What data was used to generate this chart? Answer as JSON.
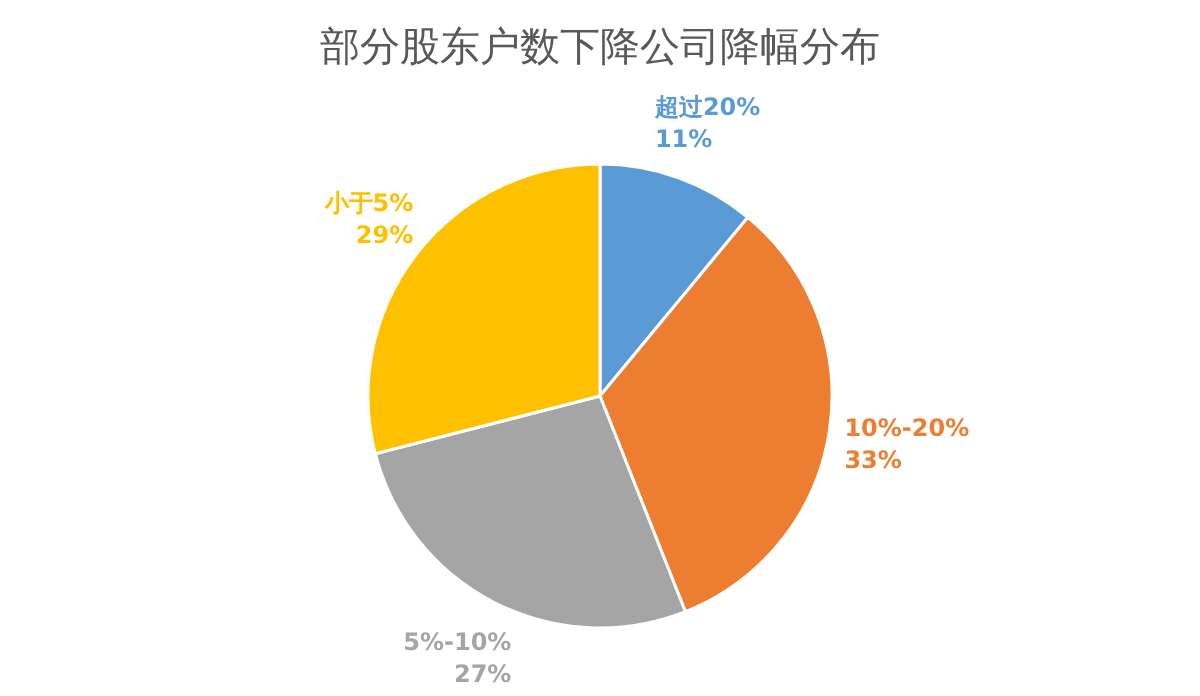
{
  "chart_data": {
    "type": "pie",
    "title": "部分股东户数下降公司降幅分布",
    "categories": [
      "超过20%",
      "10%-20%",
      "5%-10%",
      "小于5%"
    ],
    "values": [
      11,
      33,
      27,
      29
    ],
    "value_labels": [
      "11%",
      "33%",
      "27%",
      "29%"
    ],
    "colors": [
      "#5b9bd5",
      "#ed7d31",
      "#a5a5a5",
      "#ffc000"
    ]
  }
}
